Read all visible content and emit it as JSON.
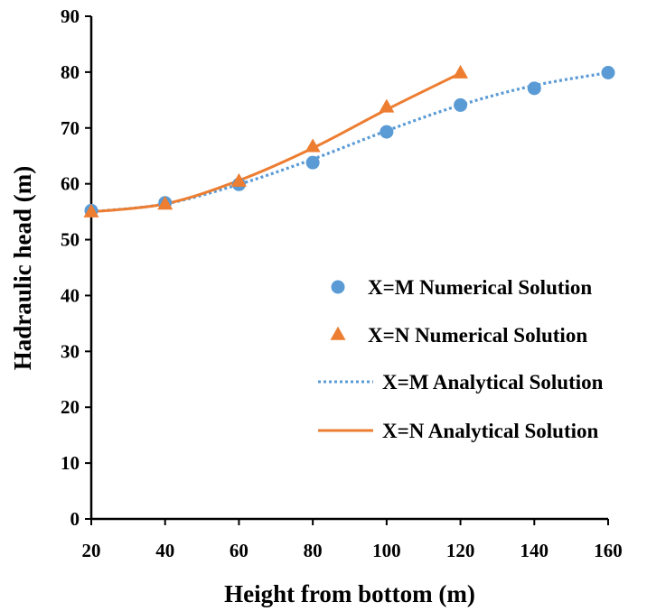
{
  "chart_data": {
    "type": "scatter",
    "title": "",
    "xlabel": "Height from bottom (m)",
    "ylabel": "Hadraulic head (m)",
    "xlim": [
      20,
      160
    ],
    "ylim": [
      0,
      90
    ],
    "xticks": [
      20,
      40,
      60,
      80,
      100,
      120,
      140,
      160
    ],
    "yticks": [
      0,
      10,
      20,
      30,
      40,
      50,
      60,
      70,
      80,
      90
    ],
    "grid": false,
    "legend_position": "right",
    "series": [
      {
        "name": "X=M Numerical Solution",
        "kind": "scatter",
        "marker": "circle",
        "color": "#5B9BD5",
        "x": [
          20,
          40,
          60,
          80,
          100,
          120,
          140,
          160
        ],
        "y": [
          55.2,
          56.6,
          59.9,
          63.8,
          69.3,
          74.1,
          77.1,
          79.9
        ]
      },
      {
        "name": "X=N Numerical Solution",
        "kind": "scatter",
        "marker": "triangle",
        "color": "#ED7D31",
        "x": [
          20,
          40,
          60,
          80,
          100,
          120
        ],
        "y": [
          54.9,
          56.3,
          60.4,
          66.6,
          73.7,
          79.8
        ]
      },
      {
        "name": "X=M Analytical Solution",
        "kind": "line",
        "style": "dotted",
        "color": "#5B9BD5",
        "x": [
          20,
          40,
          60,
          80,
          100,
          120,
          140,
          160
        ],
        "y": [
          55.0,
          56.4,
          59.9,
          64.4,
          69.5,
          74.1,
          77.6,
          79.9
        ]
      },
      {
        "name": "X=N Analytical Solution",
        "kind": "line",
        "style": "solid",
        "color": "#ED7D31",
        "x": [
          20,
          40,
          60,
          80,
          100,
          120
        ],
        "y": [
          55.0,
          56.4,
          60.6,
          66.4,
          73.3,
          79.8
        ]
      }
    ]
  }
}
